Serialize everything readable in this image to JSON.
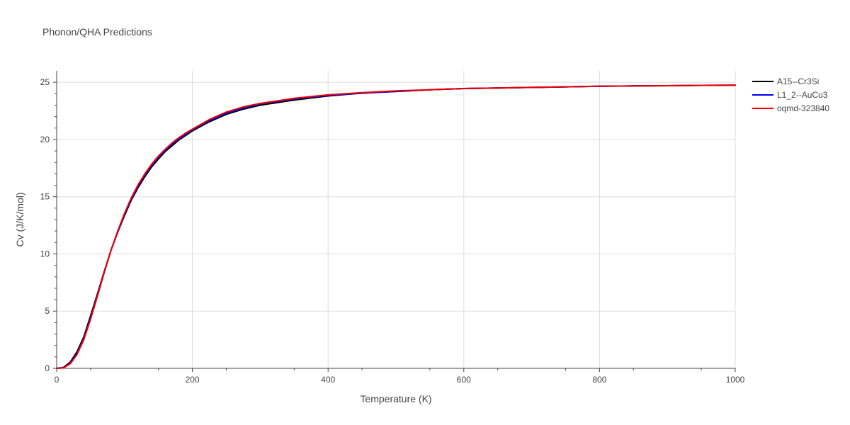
{
  "chart_data": {
    "type": "line",
    "title": "Phonon/QHA Predictions",
    "xlabel": "Temperature (K)",
    "ylabel": "Cv (J/K/mol)",
    "xlim": [
      0,
      1000
    ],
    "ylim": [
      0,
      26
    ],
    "xticks": [
      0,
      200,
      400,
      600,
      800,
      1000
    ],
    "yticks": [
      0,
      5,
      10,
      15,
      20,
      25
    ],
    "grid": true,
    "legend": "top-right",
    "series": [
      {
        "name": "A15--Cr3Si",
        "color": "#000000",
        "x": [
          0,
          10,
          20,
          30,
          40,
          50,
          60,
          70,
          80,
          90,
          100,
          110,
          120,
          130,
          140,
          150,
          160,
          170,
          180,
          190,
          200,
          225,
          250,
          275,
          300,
          350,
          400,
          450,
          500,
          550,
          600,
          650,
          700,
          750,
          800,
          850,
          900,
          950,
          1000
        ],
        "y": [
          0,
          0.08,
          0.55,
          1.45,
          2.75,
          4.6,
          6.5,
          8.45,
          10.3,
          11.9,
          13.35,
          14.7,
          15.8,
          16.75,
          17.6,
          18.3,
          18.95,
          19.45,
          19.95,
          20.35,
          20.75,
          21.55,
          22.2,
          22.65,
          23.0,
          23.45,
          23.8,
          24.05,
          24.2,
          24.35,
          24.45,
          24.5,
          24.55,
          24.6,
          24.65,
          24.68,
          24.7,
          24.73,
          24.75
        ]
      },
      {
        "name": "L1_2--AuCu3",
        "color": "#0000ee",
        "x": [
          0,
          10,
          20,
          30,
          40,
          50,
          60,
          70,
          80,
          90,
          100,
          110,
          120,
          130,
          140,
          150,
          160,
          170,
          180,
          190,
          200,
          225,
          250,
          275,
          300,
          350,
          400,
          450,
          500,
          550,
          600,
          650,
          700,
          750,
          800,
          850,
          900,
          950,
          1000
        ],
        "y": [
          0,
          0.05,
          0.45,
          1.3,
          2.6,
          4.4,
          6.35,
          8.4,
          10.3,
          11.95,
          13.45,
          14.8,
          15.95,
          16.9,
          17.75,
          18.45,
          19.05,
          19.6,
          20.05,
          20.45,
          20.85,
          21.65,
          22.3,
          22.75,
          23.1,
          23.55,
          23.85,
          24.05,
          24.2,
          24.35,
          24.45,
          24.5,
          24.55,
          24.6,
          24.65,
          24.68,
          24.7,
          24.73,
          24.75
        ]
      },
      {
        "name": "oqmd-323840",
        "color": "#ee0000",
        "x": [
          0,
          10,
          20,
          30,
          40,
          50,
          60,
          70,
          80,
          90,
          100,
          110,
          120,
          130,
          140,
          150,
          160,
          170,
          180,
          190,
          200,
          225,
          250,
          275,
          300,
          350,
          400,
          450,
          500,
          550,
          600,
          650,
          700,
          750,
          800,
          850,
          900,
          950,
          1000
        ],
        "y": [
          0,
          0.04,
          0.4,
          1.2,
          2.5,
          4.3,
          6.3,
          8.35,
          10.3,
          12.0,
          13.55,
          14.9,
          16.05,
          17.0,
          17.85,
          18.55,
          19.15,
          19.7,
          20.15,
          20.55,
          20.9,
          21.75,
          22.4,
          22.85,
          23.15,
          23.6,
          23.9,
          24.1,
          24.25,
          24.35,
          24.45,
          24.5,
          24.55,
          24.6,
          24.65,
          24.68,
          24.7,
          24.73,
          24.75
        ]
      }
    ]
  }
}
